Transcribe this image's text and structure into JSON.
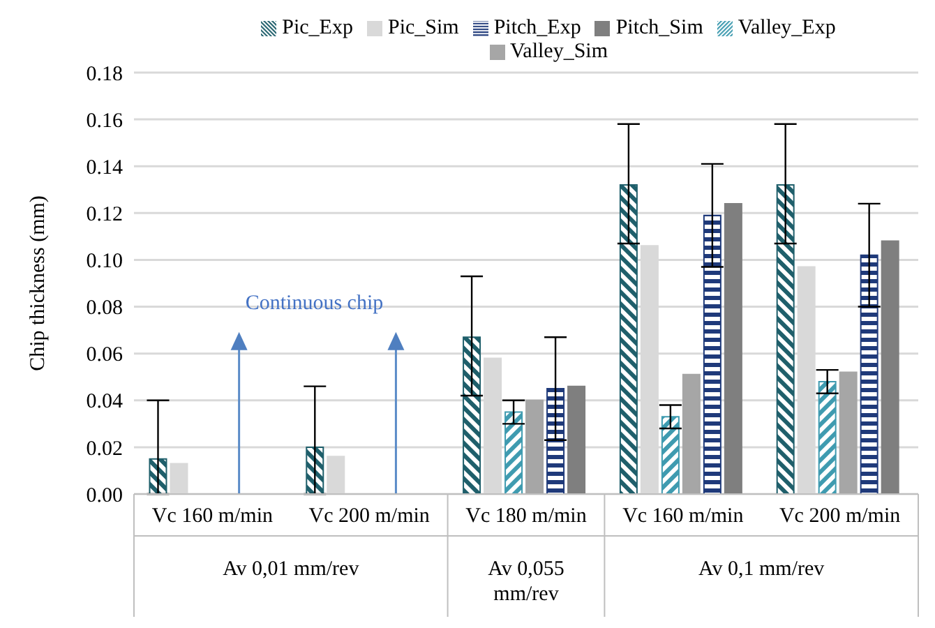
{
  "chart_data": {
    "type": "bar",
    "ylabel": "Chip thickness (mm)",
    "categories": [
      "Vc 160 m/min",
      "Vc 200 m/min",
      "Vc 180 m/min",
      "Vc 160 m/min",
      "Vc 200 m/min"
    ],
    "series": [
      {
        "name": "Pic_Exp",
        "color": "#1f5f6b",
        "values": [
          0.015,
          0.02,
          0.067,
          0.132,
          0.132
        ],
        "errors": [
          [
            0,
            0.04
          ],
          [
            0,
            0.046
          ],
          [
            0.042,
            0.093
          ],
          [
            0.107,
            0.158
          ],
          [
            0.107,
            0.158
          ]
        ]
      },
      {
        "name": "Pic_Sim",
        "color": "#d9d9d9",
        "values": [
          0.013,
          0.016,
          0.058,
          0.106,
          0.097
        ]
      },
      {
        "name": "Valley_Exp",
        "color": "#3f9bb0",
        "values": [
          null,
          null,
          0.035,
          0.033,
          0.048
        ],
        "errors": [
          null,
          null,
          0.005,
          0.005,
          0.005
        ]
      },
      {
        "name": "Valley_Sim",
        "color": "#a6a6a6",
        "values": [
          null,
          null,
          0.04,
          0.051,
          0.052
        ]
      },
      {
        "name": "Pitch_Exp",
        "color": "#1f3a7a",
        "values": [
          null,
          null,
          0.045,
          0.119,
          0.102
        ],
        "errors": [
          null,
          null,
          0.022,
          0.022,
          0.022
        ]
      },
      {
        "name": "Pitch_Sim",
        "color": "#7f7f7f",
        "values": [
          null,
          null,
          0.046,
          0.124,
          0.108
        ]
      }
    ],
    "ylim": [
      0,
      0.18
    ],
    "yticks": [
      {
        "value": 0,
        "label": "0.00"
      },
      {
        "value": 0.02,
        "label": "0.02"
      },
      {
        "value": 0.04,
        "label": "0.04"
      },
      {
        "value": 0.06,
        "label": "0.06"
      },
      {
        "value": 0.08,
        "label": "0.08"
      },
      {
        "value": 0.1,
        "label": "0.10"
      },
      {
        "value": 0.12,
        "label": "0.12"
      },
      {
        "value": 0.14,
        "label": "0.14"
      },
      {
        "value": 0.16,
        "label": "0.16"
      },
      {
        "value": 0.18,
        "label": "0.18"
      }
    ],
    "grid": "y",
    "legend": "top",
    "annotations": [
      "Continuous chip",
      "Av 0,01 mm/rev",
      "Av 0,055 mm/rev",
      "Av 0,1 mm/rev"
    ]
  }
}
